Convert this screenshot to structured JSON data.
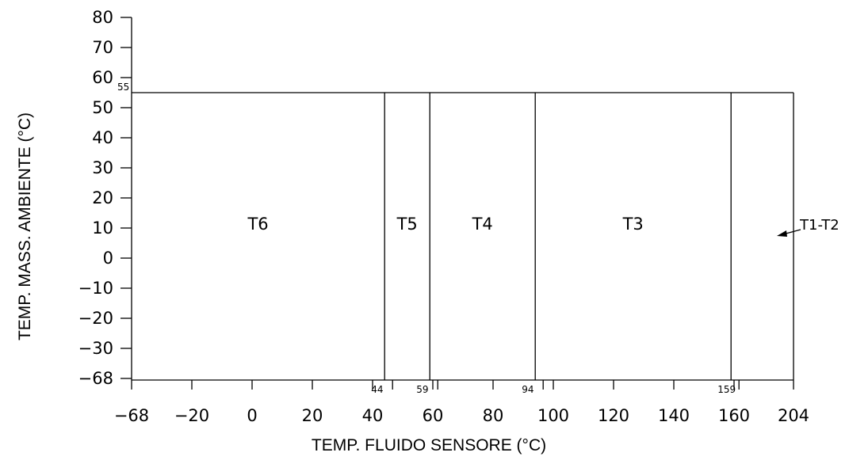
{
  "chart_data": {
    "type": "table",
    "xlabel": "TEMP. FLUIDO SENSORE (°C)",
    "ylabel": "TEMP. MASS. AMBIENTE (°C)",
    "x_ticks": [
      "-68",
      "-20",
      "0",
      "20",
      "40",
      "60",
      "80",
      "100",
      "120",
      "140",
      "160",
      "204"
    ],
    "y_ticks": [
      "80",
      "70",
      "60",
      "50",
      "40",
      "30",
      "20",
      "10",
      "0",
      "-10",
      "-20",
      "-30",
      "-68"
    ],
    "ambient_limit": {
      "value": 55,
      "label": "55"
    },
    "boundaries": [
      {
        "value": 44,
        "label": "44"
      },
      {
        "value": 59,
        "label": "59"
      },
      {
        "value": 94,
        "label": "94"
      },
      {
        "value": 159,
        "label": "159"
      }
    ],
    "zones": [
      {
        "label": "T6",
        "x_from": -68,
        "x_to": 44
      },
      {
        "label": "T5",
        "x_from": 44,
        "x_to": 59
      },
      {
        "label": "T4",
        "x_from": 59,
        "x_to": 94
      },
      {
        "label": "T3",
        "x_from": 94,
        "x_to": 159
      },
      {
        "label": "T1-T2",
        "x_from": 159,
        "x_to": 204
      }
    ]
  }
}
